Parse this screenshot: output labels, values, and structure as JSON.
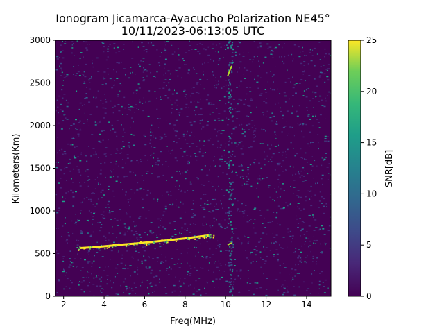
{
  "chart_data": {
    "type": "heatmap",
    "title_line1": "Ionogram Jicamarca-Ayacucho Polarization NE45°",
    "title_line2": "10/11/2023-06:13:05 UTC",
    "xlabel": "Freq(MHz)",
    "ylabel": "Kilometers(Km)",
    "xlim": [
      1.6,
      15.2
    ],
    "ylim": [
      0,
      3000
    ],
    "x_ticks": [
      2,
      4,
      6,
      8,
      10,
      12,
      14
    ],
    "y_ticks": [
      0,
      500,
      1000,
      1500,
      2000,
      2500,
      3000
    ],
    "colorbar": {
      "label": "SNR[dB]",
      "range": [
        0,
        25
      ],
      "ticks": [
        0,
        5,
        10,
        15,
        20,
        25
      ],
      "colormap": "viridis"
    },
    "background_color": "#440154",
    "traces": [
      {
        "name": "echo-trace",
        "points": [
          [
            2.8,
            565
          ],
          [
            3.5,
            575
          ],
          [
            4.0,
            585
          ],
          [
            4.5,
            597
          ],
          [
            5.0,
            607
          ],
          [
            5.5,
            617
          ],
          [
            6.0,
            628
          ],
          [
            6.5,
            640
          ],
          [
            7.0,
            652
          ],
          [
            7.5,
            665
          ],
          [
            8.0,
            678
          ],
          [
            8.5,
            693
          ],
          [
            9.0,
            708
          ],
          [
            9.2,
            712
          ]
        ]
      },
      {
        "name": "line-10mhz-spike",
        "points": [
          [
            10.1,
            2580
          ],
          [
            10.2,
            2640
          ],
          [
            10.3,
            2700
          ]
        ]
      },
      {
        "name": "line-10mhz-low",
        "points": [
          [
            10.1,
            600
          ],
          [
            10.2,
            615
          ],
          [
            10.3,
            625
          ]
        ]
      }
    ]
  }
}
